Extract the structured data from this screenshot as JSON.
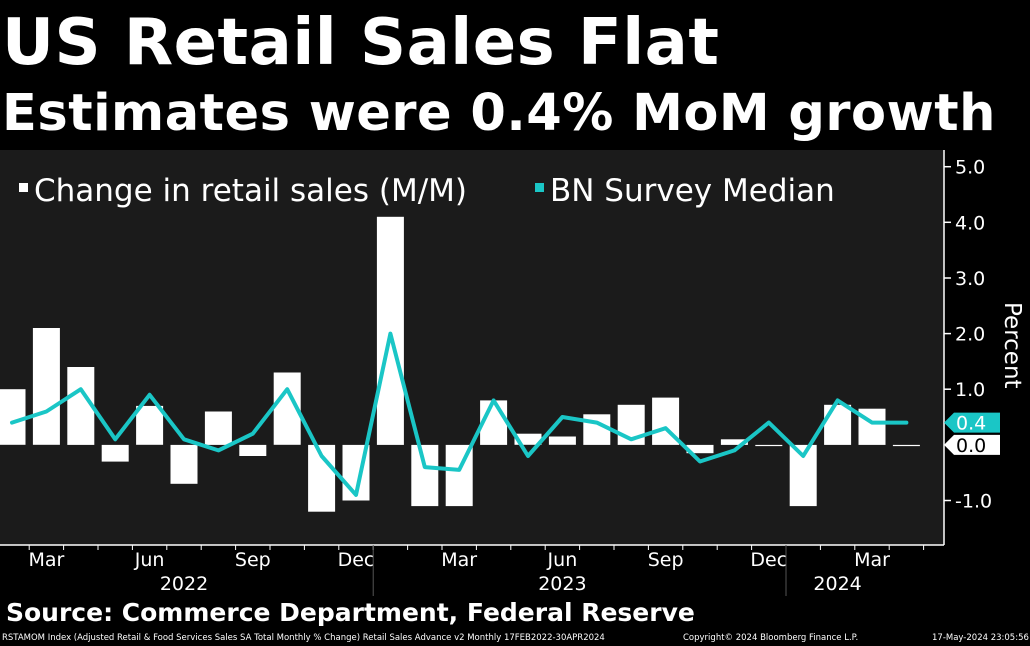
{
  "title": "US Retail Sales Flat",
  "subtitle": "Estimates were 0.4% MoM growth",
  "source": "Source: Commerce Department, Federal Reserve",
  "footer": {
    "left": "RSTAMOM Index (Adjusted Retail & Food Services Sales SA Total Monthly % Change) Retail Sales Advance v2  Monthly 17FEB2022-30APR2024",
    "middle": "Copyright© 2024 Bloomberg Finance L.P.",
    "right": "17-May-2024 23:05:56"
  },
  "colors": {
    "background": "#000000",
    "plot_background": "#1b1b1b",
    "bars": "#ffffff",
    "line": "#1ac6c6",
    "text": "#ffffff"
  },
  "chart_data": {
    "type": "bar",
    "x": [
      "2022-02",
      "2022-03",
      "2022-04",
      "2022-05",
      "2022-06",
      "2022-07",
      "2022-08",
      "2022-09",
      "2022-10",
      "2022-11",
      "2022-12",
      "2023-01",
      "2023-02",
      "2023-03",
      "2023-04",
      "2023-05",
      "2023-06",
      "2023-07",
      "2023-08",
      "2023-09",
      "2023-10",
      "2023-11",
      "2023-12",
      "2024-01",
      "2024-02",
      "2024-03",
      "2024-04"
    ],
    "series": [
      {
        "name": "Change in retail sales (M/M)",
        "type": "bar",
        "color": "#ffffff",
        "values": [
          1.0,
          2.1,
          1.4,
          -0.3,
          0.7,
          -0.7,
          0.6,
          -0.2,
          1.3,
          -1.2,
          -1.0,
          4.1,
          -1.1,
          -1.1,
          0.8,
          0.2,
          0.15,
          0.55,
          0.72,
          0.85,
          -0.15,
          0.1,
          0.0,
          -1.1,
          0.72,
          0.65,
          0.0
        ]
      },
      {
        "name": "BN Survey Median",
        "type": "line",
        "color": "#1ac6c6",
        "values": [
          0.4,
          0.6,
          1.0,
          0.1,
          0.9,
          0.1,
          -0.1,
          0.2,
          1.0,
          -0.2,
          -0.9,
          2.0,
          -0.4,
          -0.45,
          0.8,
          -0.2,
          0.5,
          0.4,
          0.1,
          0.3,
          -0.3,
          -0.1,
          0.4,
          -0.2,
          0.8,
          0.4,
          0.4
        ]
      }
    ],
    "xaxis": {
      "month_labels": [
        {
          "label": "Mar",
          "x": "2022-03"
        },
        {
          "label": "Jun",
          "x": "2022-06"
        },
        {
          "label": "Sep",
          "x": "2022-09"
        },
        {
          "label": "Dec",
          "x": "2022-12"
        },
        {
          "label": "Mar",
          "x": "2023-03"
        },
        {
          "label": "Jun",
          "x": "2023-06"
        },
        {
          "label": "Sep",
          "x": "2023-09"
        },
        {
          "label": "Dec",
          "x": "2023-12"
        },
        {
          "label": "Mar",
          "x": "2024-03"
        }
      ],
      "year_labels": [
        {
          "label": "2022",
          "x": "2022-07"
        },
        {
          "label": "2023",
          "x": "2023-06"
        },
        {
          "label": "2024",
          "x": "2024-02"
        }
      ]
    },
    "yaxis": {
      "label": "Percent",
      "ticks": [
        "5.0",
        "4.0",
        "3.0",
        "2.0",
        "1.0",
        "-1.0"
      ],
      "tick_values": [
        5.0,
        4.0,
        3.0,
        2.0,
        1.0,
        -1.0
      ],
      "ylim": [
        -1.8,
        5.3
      ],
      "position": "right"
    },
    "last_value_tags": [
      {
        "series": "BN Survey Median",
        "label": "0.4",
        "value": 0.4
      },
      {
        "series": "Change in retail sales (M/M)",
        "label": "0.0",
        "value": 0.0
      }
    ],
    "legend": {
      "placement": "top-left"
    },
    "grid": false
  }
}
